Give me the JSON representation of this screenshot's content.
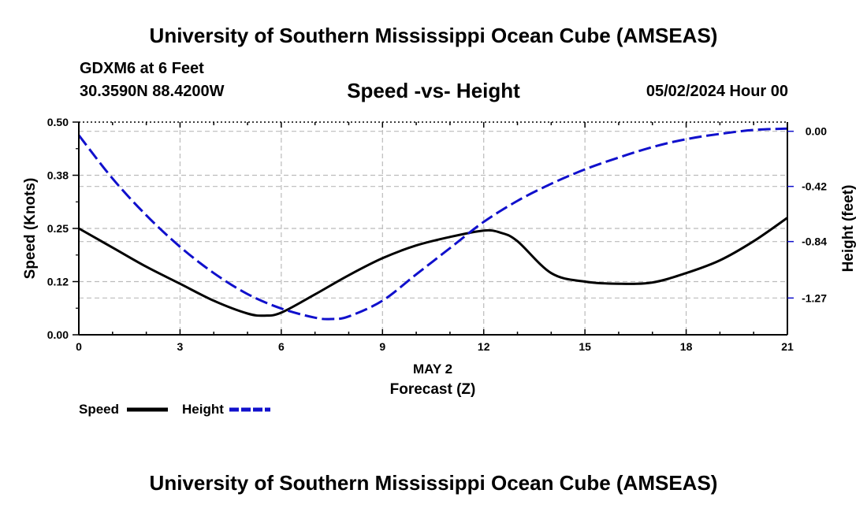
{
  "header": {
    "title": "University of Southern Mississippi Ocean Cube (AMSEAS)",
    "station": "GDXM6 at 6 Feet",
    "coords": "30.3590N  88.4200W",
    "subtitle": "Speed -vs- Height",
    "datetime": "05/02/2024 Hour 00"
  },
  "footer": {
    "title": "University of Southern Mississippi Ocean Cube (AMSEAS)"
  },
  "colors": {
    "speed": "#000000",
    "height": "#1010cc",
    "grid": "#bbbbbb"
  },
  "chart_data": {
    "type": "line",
    "title": "Speed -vs- Height",
    "xlabel": "Forecast (Z)",
    "xlabel_date": "MAY 2",
    "ylabel_left": "Speed (Knots)",
    "ylabel_right": "Height (feet)",
    "xlim": [
      0,
      21
    ],
    "ylim_left": [
      0,
      0.5
    ],
    "ylim_right": [
      -1.55,
      0.07
    ],
    "x_ticks": [
      0,
      3,
      6,
      9,
      12,
      15,
      18,
      21
    ],
    "x_tick_labels": [
      "0",
      "3",
      "6",
      "9",
      "12",
      "15",
      "18",
      "21"
    ],
    "y_left_ticks": [
      0.0,
      0.125,
      0.25,
      0.375,
      0.5
    ],
    "y_left_tick_labels": [
      "0.00",
      "0.12",
      "0.25",
      "0.38",
      "0.50"
    ],
    "y_right_ticks": [
      0.0,
      -0.42,
      -0.84,
      -1.27
    ],
    "y_right_tick_labels": [
      "0.00",
      "-0.42",
      "-0.84",
      "-1.27"
    ],
    "grid": true,
    "series": [
      {
        "name": "Speed",
        "axis": "left",
        "style": "solid",
        "x": [
          0,
          1,
          2,
          3,
          4,
          5,
          5.5,
          6,
          7,
          8,
          9,
          10,
          11,
          12,
          12.5,
          13,
          14,
          15,
          16,
          17,
          18,
          19,
          20,
          21
        ],
        "values": [
          0.25,
          0.205,
          0.16,
          0.12,
          0.08,
          0.05,
          0.045,
          0.052,
          0.095,
          0.14,
          0.18,
          0.21,
          0.23,
          0.245,
          0.24,
          0.22,
          0.145,
          0.125,
          0.12,
          0.123,
          0.145,
          0.175,
          0.22,
          0.275
        ]
      },
      {
        "name": "Height",
        "axis": "right",
        "style": "dashed",
        "x": [
          0,
          1,
          2,
          3,
          4,
          5,
          6,
          7,
          7.5,
          8,
          9,
          10,
          11,
          12,
          13,
          14,
          15,
          16,
          17,
          18,
          19,
          20,
          21
        ],
        "values": [
          -0.03,
          -0.36,
          -0.64,
          -0.88,
          -1.08,
          -1.24,
          -1.35,
          -1.42,
          -1.43,
          -1.41,
          -1.29,
          -1.09,
          -0.89,
          -0.69,
          -0.53,
          -0.4,
          -0.29,
          -0.2,
          -0.12,
          -0.06,
          -0.02,
          0.01,
          0.02
        ]
      }
    ],
    "legend": {
      "position": "bottom-left",
      "entries": [
        "Speed",
        "Height"
      ]
    }
  }
}
